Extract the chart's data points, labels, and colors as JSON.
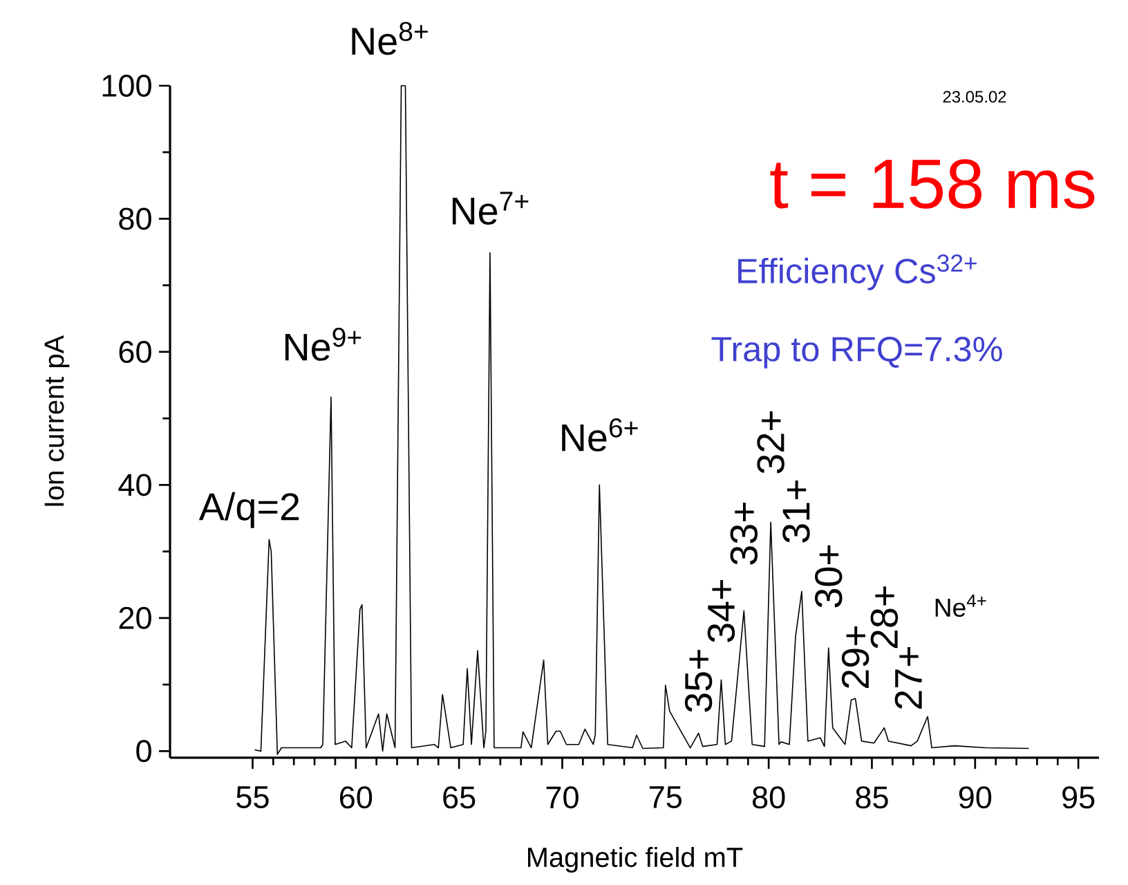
{
  "chart_data": {
    "type": "line",
    "xlabel": "Magnetic field mT",
    "ylabel": "Ion current pA",
    "color": "#000000",
    "x": [
      55.1,
      55.4,
      55.8,
      55.9,
      56.2,
      56.4,
      58.3,
      58.4,
      58.8,
      59.0,
      59.5,
      59.8,
      60.2,
      60.3,
      60.5,
      61.1,
      61.3,
      61.5,
      61.9,
      62.2,
      62.4,
      62.7,
      63.8,
      64.0,
      64.2,
      64.6,
      65.2,
      65.4,
      65.6,
      65.9,
      66.2,
      66.3,
      66.5,
      66.7,
      68.0,
      68.1,
      68.5,
      69.1,
      69.3,
      69.7,
      69.9,
      70.2,
      70.8,
      71.1,
      71.5,
      71.6,
      71.8,
      72.2,
      73.4,
      73.6,
      73.9,
      74.9,
      75.0,
      75.2,
      76.2,
      76.6,
      76.8,
      77.5,
      77.7,
      77.9,
      78.2,
      78.8,
      79.2,
      79.8,
      80.1,
      80.5,
      80.6,
      81.0,
      81.3,
      81.6,
      81.9,
      82.5,
      82.7,
      82.9,
      83.1,
      83.7,
      84.0,
      84.2,
      84.5,
      85.1,
      85.6,
      85.8,
      86.9,
      87.2,
      87.7,
      87.9,
      89.0,
      90.5,
      92.6
    ],
    "values": [
      0.2,
      0,
      31.8,
      30,
      -0.5,
      0.5,
      0.5,
      1,
      53.2,
      1,
      1.5,
      0.5,
      21.3,
      22,
      0.5,
      5.6,
      0,
      5.6,
      0.5,
      100,
      100,
      0.5,
      1,
      0.5,
      8.5,
      0.5,
      1,
      12.4,
      1,
      15.1,
      0.5,
      3,
      74.9,
      0.5,
      0.5,
      2.9,
      0.5,
      13.7,
      1,
      3,
      3,
      1,
      1,
      3.3,
      1,
      2.5,
      40,
      1,
      0.5,
      2.4,
      0.4,
      0.5,
      9.9,
      6,
      0.5,
      2.7,
      0.7,
      1,
      10.7,
      1,
      1.5,
      21.1,
      1,
      0.7,
      34.4,
      1,
      1.4,
      1,
      17.2,
      24,
      1.5,
      2,
      0.7,
      15.5,
      3.5,
      1,
      7.7,
      7.9,
      1.5,
      1.2,
      3.5,
      1.5,
      0.8,
      1.5,
      5.2,
      0.5,
      0.8,
      0.5,
      0.4
    ],
    "xlim": [
      51,
      96
    ],
    "ylim": [
      -1,
      100
    ],
    "xticks": [
      55,
      60,
      65,
      70,
      75,
      80,
      85,
      90,
      95
    ],
    "yticks": [
      0,
      20,
      40,
      60,
      80,
      100
    ],
    "annotations": [
      "23.05.02",
      "t = 158 ms",
      "Efficiency Cs$^{32+}$",
      "Trap to RFQ=7.3%",
      {
        "text": "A/q=2",
        "x": 55.8,
        "y": 31.8
      },
      {
        "text": "Ne$^{9+}$",
        "x": 58.8,
        "y": 53.2
      },
      {
        "text": "Ne$^{8+}$",
        "x": 62.3,
        "y": 100
      },
      {
        "text": "Ne$^{7+}$",
        "x": 66.5,
        "y": 74.9
      },
      {
        "text": "Ne$^{6+}$",
        "x": 71.8,
        "y": 40
      },
      {
        "text": "35+",
        "x": 76.6,
        "y": 2.7
      },
      {
        "text": "34+",
        "x": 77.7,
        "y": 10.7
      },
      {
        "text": "33+",
        "x": 78.8,
        "y": 21.1
      },
      {
        "text": "32+",
        "x": 80.1,
        "y": 34.4
      },
      {
        "text": "31+",
        "x": 81.6,
        "y": 24
      },
      {
        "text": "30+",
        "x": 82.9,
        "y": 15.5
      },
      {
        "text": "29+",
        "x": 84.2,
        "y": 7.9
      },
      {
        "text": "28+",
        "x": 85.6,
        "y": 3.5
      },
      {
        "text": "27+",
        "x": 87.7,
        "y": 5.2
      },
      "Ne$^{4+}$"
    ]
  }
}
